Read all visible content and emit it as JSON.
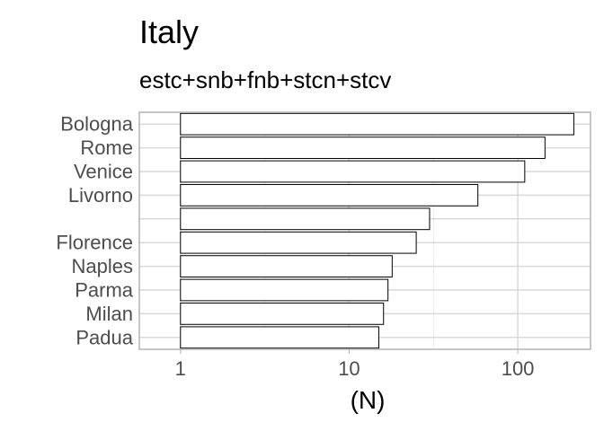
{
  "chart_data": {
    "type": "bar",
    "orientation": "horizontal",
    "title": "Italy",
    "subtitle": "estc+snb+fnb+stcn+stcv",
    "xlabel": "(N)",
    "ylabel": "",
    "x_scale": "log10",
    "xlim": [
      0.57,
      270
    ],
    "x_ticks": [
      1,
      10,
      100
    ],
    "x_tick_labels": [
      "1",
      "10",
      "100"
    ],
    "grid": true,
    "categories": [
      "Bologna",
      "Rome",
      "Venice",
      "Livorno",
      "",
      "Florence",
      "Naples",
      "Parma",
      "Milan",
      "Padua"
    ],
    "values": [
      215,
      145,
      110,
      58,
      30,
      25,
      18,
      17,
      16,
      15
    ],
    "colors": {
      "bar_fill": "#ffffff",
      "bar_stroke": "#000000",
      "grid_major": "#d9d9d9",
      "grid_minor": "#ebebeb",
      "panel_border": "#b3b3b3",
      "label_text": "#4d4d4d"
    }
  }
}
